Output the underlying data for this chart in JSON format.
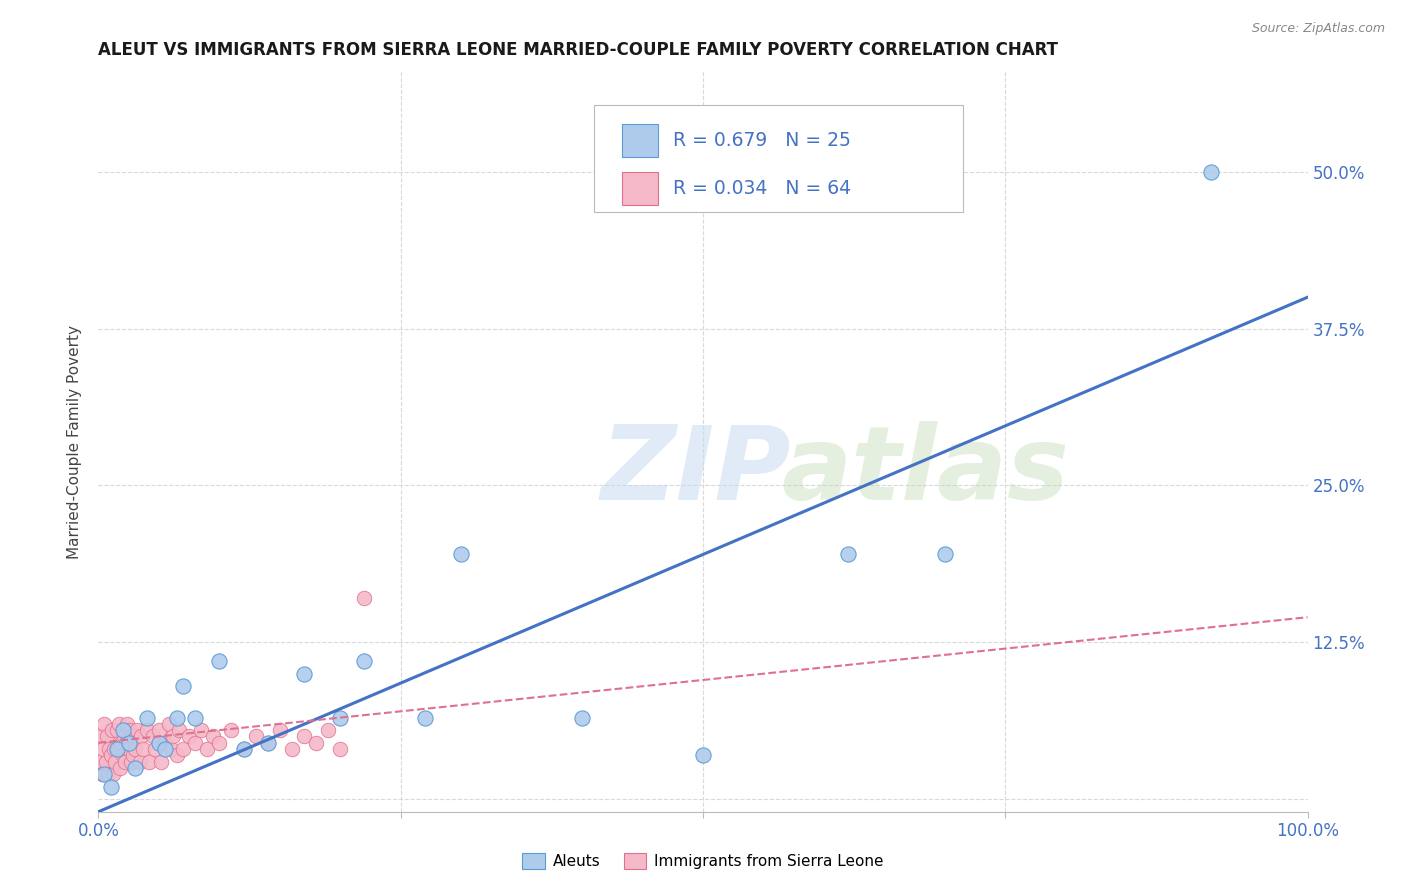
{
  "title": "ALEUT VS IMMIGRANTS FROM SIERRA LEONE MARRIED-COUPLE FAMILY POVERTY CORRELATION CHART",
  "source": "Source: ZipAtlas.com",
  "ylabel": "Married-Couple Family Poverty",
  "watermark_zip": "ZIP",
  "watermark_atlas": "atlas",
  "aleut_R": 0.679,
  "aleut_N": 25,
  "sierra_R": 0.034,
  "sierra_N": 64,
  "aleut_color": "#aecbec",
  "aleut_edge_color": "#5b9bd5",
  "aleut_line_color": "#4472c4",
  "sierra_color": "#f5b8c8",
  "sierra_edge_color": "#e07090",
  "sierra_line_color": "#e07090",
  "background_color": "#ffffff",
  "grid_color": "#d9d9d9",
  "title_color": "#1a1a1a",
  "axis_label_color": "#4472c4",
  "xlim": [
    0,
    1.0
  ],
  "ylim": [
    -0.01,
    0.58
  ],
  "xticks": [
    0.0,
    0.25,
    0.5,
    0.75,
    1.0
  ],
  "xtick_labels": [
    "0.0%",
    "",
    "",
    "",
    "100.0%"
  ],
  "ytick_positions": [
    0.0,
    0.125,
    0.25,
    0.375,
    0.5
  ],
  "ytick_labels": [
    "",
    "12.5%",
    "25.0%",
    "37.5%",
    "50.0%"
  ],
  "aleut_x": [
    0.005,
    0.01,
    0.015,
    0.02,
    0.025,
    0.03,
    0.04,
    0.05,
    0.055,
    0.065,
    0.07,
    0.08,
    0.1,
    0.12,
    0.14,
    0.17,
    0.2,
    0.22,
    0.27,
    0.3,
    0.4,
    0.5,
    0.62,
    0.7,
    0.92
  ],
  "aleut_y": [
    0.02,
    0.01,
    0.04,
    0.055,
    0.045,
    0.025,
    0.065,
    0.045,
    0.04,
    0.065,
    0.09,
    0.065,
    0.11,
    0.04,
    0.045,
    0.1,
    0.065,
    0.11,
    0.065,
    0.195,
    0.065,
    0.035,
    0.195,
    0.195,
    0.5
  ],
  "aleut_line_x0": 0.0,
  "aleut_line_y0": -0.01,
  "aleut_line_x1": 1.0,
  "aleut_line_y1": 0.4,
  "sierra_line_x0": 0.0,
  "sierra_line_y0": 0.045,
  "sierra_line_x1": 1.0,
  "sierra_line_y1": 0.145,
  "sierra_x": [
    0.001,
    0.002,
    0.003,
    0.004,
    0.005,
    0.006,
    0.007,
    0.008,
    0.009,
    0.01,
    0.011,
    0.012,
    0.013,
    0.014,
    0.015,
    0.016,
    0.017,
    0.018,
    0.019,
    0.02,
    0.021,
    0.022,
    0.023,
    0.024,
    0.025,
    0.026,
    0.027,
    0.028,
    0.029,
    0.03,
    0.032,
    0.034,
    0.035,
    0.037,
    0.04,
    0.042,
    0.045,
    0.047,
    0.05,
    0.052,
    0.055,
    0.058,
    0.06,
    0.062,
    0.065,
    0.067,
    0.07,
    0.075,
    0.08,
    0.085,
    0.09,
    0.095,
    0.1,
    0.11,
    0.12,
    0.13,
    0.14,
    0.15,
    0.16,
    0.17,
    0.18,
    0.19,
    0.2,
    0.22
  ],
  "sierra_y": [
    0.03,
    0.05,
    0.02,
    0.04,
    0.06,
    0.03,
    0.05,
    0.02,
    0.04,
    0.035,
    0.055,
    0.02,
    0.04,
    0.03,
    0.055,
    0.04,
    0.06,
    0.025,
    0.045,
    0.035,
    0.05,
    0.03,
    0.045,
    0.06,
    0.04,
    0.055,
    0.03,
    0.05,
    0.035,
    0.04,
    0.055,
    0.03,
    0.05,
    0.04,
    0.055,
    0.03,
    0.05,
    0.04,
    0.055,
    0.03,
    0.045,
    0.06,
    0.04,
    0.05,
    0.035,
    0.055,
    0.04,
    0.05,
    0.045,
    0.055,
    0.04,
    0.05,
    0.045,
    0.055,
    0.04,
    0.05,
    0.045,
    0.055,
    0.04,
    0.05,
    0.045,
    0.055,
    0.04,
    0.16
  ],
  "legend_labels": [
    "Aleuts",
    "Immigrants from Sierra Leone"
  ]
}
